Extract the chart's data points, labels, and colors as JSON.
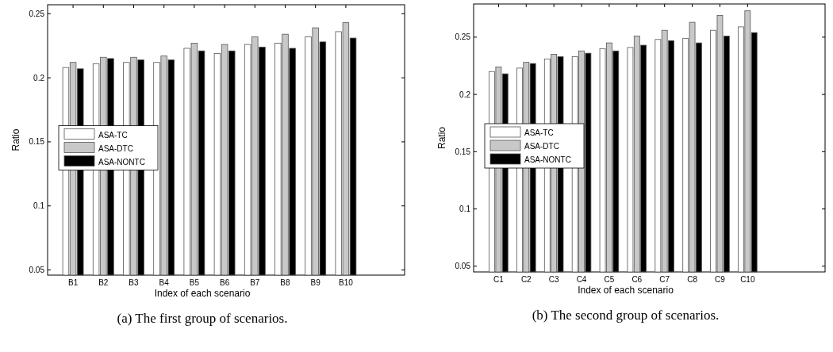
{
  "chart_data": [
    {
      "type": "bar",
      "xlabel": "Index of each scenario",
      "ylabel": "Ratio",
      "categories": [
        "B1",
        "B2",
        "B3",
        "B4",
        "B5",
        "B6",
        "B7",
        "B8",
        "B9",
        "B10"
      ],
      "ylim": [
        0.046,
        0.257
      ],
      "yticks": [
        0.05,
        0.1,
        0.15,
        0.2,
        0.25
      ],
      "legend": "left",
      "annotations": [
        "(a) The first group of scenarios."
      ],
      "series": [
        {
          "name": "ASA-TC",
          "color": "#ffffff",
          "values": [
            0.208,
            0.211,
            0.212,
            0.212,
            0.223,
            0.219,
            0.226,
            0.227,
            0.232,
            0.236
          ]
        },
        {
          "name": "ASA-DTC",
          "color": "#c8c8c8",
          "values": [
            0.212,
            0.216,
            0.216,
            0.217,
            0.227,
            0.226,
            0.232,
            0.234,
            0.239,
            0.243
          ]
        },
        {
          "name": "ASA-NONTC",
          "color": "#000000",
          "values": [
            0.207,
            0.215,
            0.214,
            0.214,
            0.221,
            0.221,
            0.224,
            0.223,
            0.228,
            0.231
          ]
        }
      ]
    },
    {
      "type": "bar",
      "xlabel": "Index of each scenario",
      "ylabel": "Ratio",
      "categories": [
        "C1",
        "C2",
        "C3",
        "C4",
        "C5",
        "C6",
        "C7",
        "C8",
        "C9",
        "C10"
      ],
      "ylim": [
        0.045,
        0.279
      ],
      "yticks": [
        0.05,
        0.1,
        0.15,
        0.2,
        0.25
      ],
      "legend": "left",
      "annotations": [
        "(b) The second group of scenarios."
      ],
      "series": [
        {
          "name": "ASA-TC",
          "color": "#ffffff",
          "values": [
            0.22,
            0.223,
            0.231,
            0.233,
            0.24,
            0.241,
            0.248,
            0.249,
            0.256,
            0.259
          ]
        },
        {
          "name": "ASA-DTC",
          "color": "#c8c8c8",
          "values": [
            0.224,
            0.228,
            0.235,
            0.238,
            0.245,
            0.251,
            0.256,
            0.263,
            0.269,
            0.273
          ]
        },
        {
          "name": "ASA-NONTC",
          "color": "#000000",
          "values": [
            0.218,
            0.227,
            0.233,
            0.236,
            0.238,
            0.243,
            0.247,
            0.245,
            0.251,
            0.254
          ]
        }
      ]
    }
  ]
}
